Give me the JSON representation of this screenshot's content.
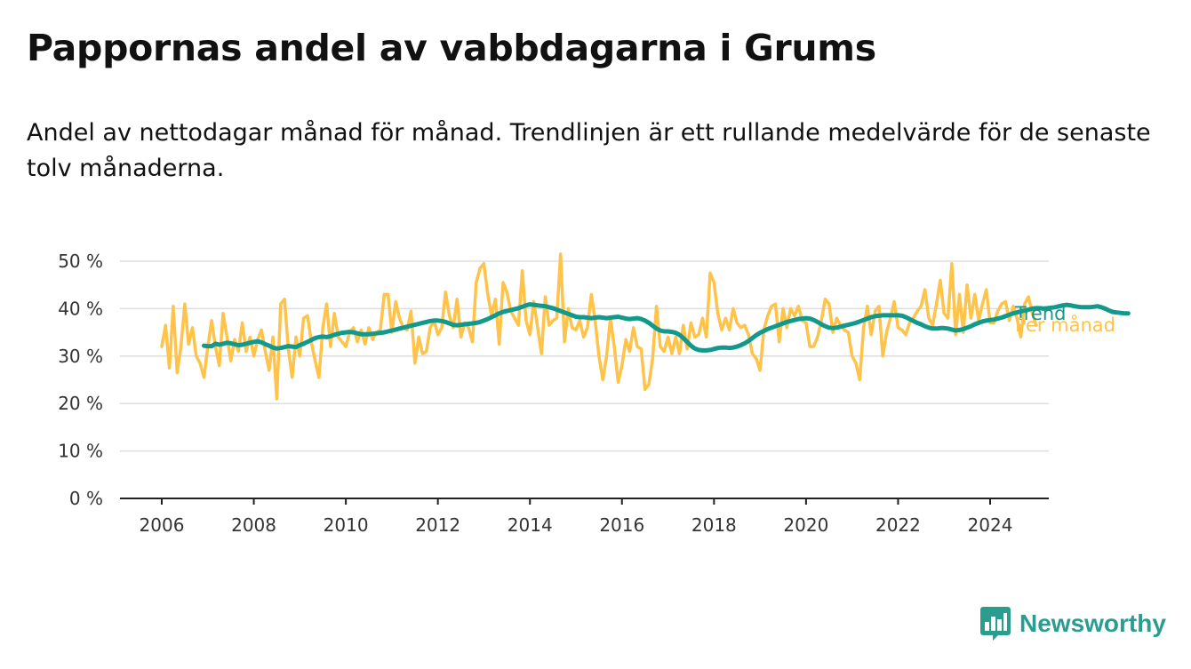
{
  "title": "Pappornas andel av vabbdagarna i Grums",
  "subtitle": "Andel av nettodagar månad för månad. Trendlinjen är ett rullande medelvärde för de senaste tolv månaderna.",
  "brand": {
    "name": "Newsworthy",
    "logo_icon": "bar-chart-speech-bubble-icon"
  },
  "chart_data": {
    "type": "line",
    "xlabel": "",
    "ylabel": "",
    "ylim": [
      0,
      50
    ],
    "y_ticks": [
      0,
      10,
      20,
      30,
      40,
      50
    ],
    "y_tick_labels": [
      "0 %",
      "10 %",
      "20 %",
      "30 %",
      "40 %",
      "50 %"
    ],
    "x_ticks": [
      2006,
      2008,
      2010,
      2012,
      2014,
      2016,
      2018,
      2020,
      2022,
      2024
    ],
    "x_tick_labels": [
      "2006",
      "2008",
      "2010",
      "2012",
      "2014",
      "2016",
      "2018",
      "2020",
      "2022",
      "2024"
    ],
    "grid": "horizontal",
    "legend": "right-end-labels",
    "x_start": "2006-01",
    "series": [
      {
        "name": "Trend",
        "color": "#13998b",
        "x_start": "2006-12",
        "values": [
          32.2,
          32.1,
          32.1,
          32.6,
          32.4,
          32.6,
          32.8,
          32.7,
          32.5,
          32.3,
          32.4,
          32.6,
          32.8,
          33.0,
          33.1,
          32.9,
          32.5,
          32.2,
          31.8,
          31.6,
          31.7,
          31.9,
          32.1,
          32.0,
          31.9,
          32.3,
          32.6,
          33.0,
          33.4,
          33.8,
          34.0,
          34.1,
          34.0,
          34.2,
          34.5,
          34.7,
          34.9,
          35.0,
          35.1,
          35.0,
          34.8,
          34.6,
          34.6,
          34.6,
          34.7,
          34.8,
          34.9,
          35.0,
          35.2,
          35.4,
          35.6,
          35.8,
          36.0,
          36.2,
          36.4,
          36.6,
          36.8,
          37.0,
          37.2,
          37.4,
          37.5,
          37.5,
          37.4,
          37.2,
          36.9,
          36.6,
          36.5,
          36.6,
          36.7,
          36.8,
          36.9,
          37.0,
          37.2,
          37.5,
          37.8,
          38.2,
          38.6,
          39.0,
          39.3,
          39.5,
          39.7,
          39.9,
          40.1,
          40.4,
          40.7,
          40.9,
          40.8,
          40.7,
          40.6,
          40.5,
          40.3,
          40.1,
          39.8,
          39.5,
          39.2,
          38.9,
          38.6,
          38.3,
          38.2,
          38.2,
          38.1,
          38.0,
          38.1,
          38.2,
          38.1,
          38.0,
          38.1,
          38.2,
          38.3,
          38.1,
          37.9,
          37.8,
          37.9,
          38.0,
          37.8,
          37.5,
          37.0,
          36.4,
          35.8,
          35.4,
          35.2,
          35.2,
          35.1,
          34.9,
          34.5,
          33.8,
          33.0,
          32.2,
          31.6,
          31.3,
          31.2,
          31.2,
          31.3,
          31.5,
          31.7,
          31.8,
          31.8,
          31.7,
          31.8,
          32.0,
          32.3,
          32.7,
          33.2,
          33.8,
          34.4,
          34.9,
          35.3,
          35.7,
          36.0,
          36.3,
          36.6,
          36.9,
          37.2,
          37.4,
          37.6,
          37.8,
          37.9,
          38.0,
          37.9,
          37.6,
          37.2,
          36.7,
          36.3,
          36.0,
          35.9,
          36.0,
          36.2,
          36.4,
          36.6,
          36.8,
          37.0,
          37.3,
          37.6,
          37.9,
          38.2,
          38.4,
          38.5,
          38.6,
          38.6,
          38.6,
          38.6,
          38.6,
          38.5,
          38.2,
          37.8,
          37.4,
          37.0,
          36.7,
          36.3,
          36.0,
          35.8,
          35.8,
          35.9,
          35.9,
          35.8,
          35.6,
          35.4,
          35.5,
          35.7,
          36.0,
          36.3,
          36.7,
          37.0,
          37.3,
          37.5,
          37.6,
          37.7,
          37.9,
          38.1,
          38.4,
          38.7,
          39.0,
          39.2,
          39.4,
          39.6,
          39.8,
          40.0,
          40.1,
          40.1,
          40.0,
          40.1,
          40.2,
          40.3,
          40.5,
          40.7,
          40.8,
          40.7,
          40.5,
          40.4,
          40.3,
          40.3,
          40.3,
          40.4,
          40.5,
          40.3,
          40.0,
          39.6,
          39.3,
          39.2,
          39.1,
          39.0,
          39.0
        ]
      },
      {
        "name": "Per månad",
        "color": "#ffc34a",
        "x_start": "2006-01",
        "values": [
          32.0,
          36.5,
          27.5,
          40.5,
          26.5,
          32.0,
          41.0,
          32.5,
          36.0,
          30.0,
          28.5,
          25.5,
          32.0,
          37.5,
          32.0,
          28.0,
          39.0,
          34.0,
          29.0,
          33.5,
          31.0,
          37.0,
          31.0,
          34.0,
          30.0,
          33.5,
          35.5,
          31.0,
          27.0,
          34.0,
          21.0,
          41.0,
          42.0,
          31.5,
          25.5,
          34.0,
          30.0,
          38.0,
          38.5,
          33.0,
          29.0,
          25.5,
          36.0,
          41.0,
          32.0,
          39.0,
          34.0,
          33.0,
          32.0,
          35.0,
          36.0,
          33.0,
          35.5,
          32.5,
          36.0,
          33.5,
          35.0,
          35.5,
          43.0,
          43.0,
          35.0,
          41.5,
          38.0,
          36.0,
          35.5,
          39.5,
          28.5,
          34.0,
          30.5,
          31.0,
          36.0,
          37.5,
          34.5,
          36.0,
          43.5,
          38.5,
          36.0,
          42.0,
          34.0,
          37.0,
          36.0,
          33.0,
          45.5,
          48.5,
          49.5,
          43.0,
          38.5,
          42.0,
          32.5,
          45.5,
          43.5,
          39.5,
          38.0,
          36.5,
          48.0,
          37.5,
          34.5,
          41.5,
          36.0,
          30.5,
          42.5,
          36.5,
          37.5,
          38.0,
          51.5,
          33.0,
          40.0,
          36.0,
          35.5,
          37.5,
          34.0,
          36.0,
          43.0,
          37.5,
          30.0,
          25.0,
          30.0,
          38.0,
          32.0,
          24.5,
          28.0,
          33.5,
          31.0,
          36.0,
          32.0,
          31.5,
          23.0,
          24.0,
          29.5,
          40.5,
          32.0,
          31.0,
          34.0,
          30.5,
          34.0,
          30.5,
          36.5,
          31.5,
          37.0,
          34.0,
          34.5,
          38.0,
          34.0,
          47.5,
          45.5,
          39.0,
          35.5,
          38.0,
          35.5,
          40.0,
          37.0,
          36.0,
          36.5,
          34.5,
          30.5,
          29.5,
          27.0,
          35.5,
          38.5,
          40.5,
          41.0,
          33.0,
          40.0,
          36.0,
          40.0,
          38.5,
          40.5,
          37.5,
          37.0,
          32.0,
          32.0,
          34.0,
          37.5,
          42.0,
          41.0,
          35.0,
          38.0,
          36.5,
          35.5,
          35.0,
          30.0,
          28.5,
          25.0,
          36.0,
          40.5,
          34.5,
          39.5,
          40.5,
          30.0,
          35.0,
          38.0,
          41.5,
          36.0,
          35.5,
          34.5,
          37.0,
          38.0,
          39.5,
          40.5,
          44.0,
          38.0,
          36.5,
          41.0,
          46.0,
          39.0,
          38.0,
          49.5,
          34.5,
          43.0,
          35.0,
          45.0,
          38.0,
          43.0,
          37.5,
          41.0,
          44.0,
          37.0,
          37.0,
          39.5,
          41.0,
          41.5,
          37.5,
          40.5,
          38.0,
          34.0,
          41.0,
          42.5,
          39.0,
          36.5
        ]
      }
    ]
  }
}
